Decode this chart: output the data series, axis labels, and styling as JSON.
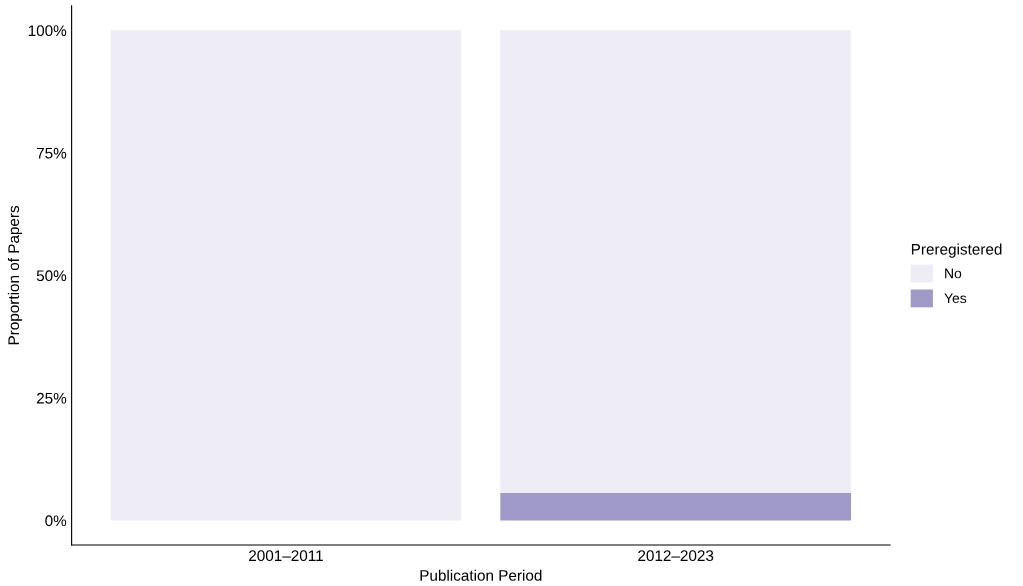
{
  "chart_data": {
    "type": "bar",
    "stacked": true,
    "xlabel": "Publication Period",
    "ylabel": "Proportion of Papers",
    "legend_title": "Preregistered",
    "categories": [
      "2001–2011",
      "2012–2023"
    ],
    "series": [
      {
        "name": "Yes",
        "color": "#9f9ac8",
        "values": [
          0,
          5.6
        ]
      },
      {
        "name": "No",
        "color": "#eeecf5",
        "values": [
          100,
          94.4
        ]
      }
    ],
    "ylim": [
      -5,
      105
    ],
    "yticks": [
      {
        "value": 0,
        "label": "0%"
      },
      {
        "value": 25,
        "label": "25%"
      },
      {
        "value": 50,
        "label": "50%"
      },
      {
        "value": 75,
        "label": "75%"
      },
      {
        "value": 100,
        "label": "100%"
      }
    ],
    "grid": false,
    "legend": "right"
  }
}
